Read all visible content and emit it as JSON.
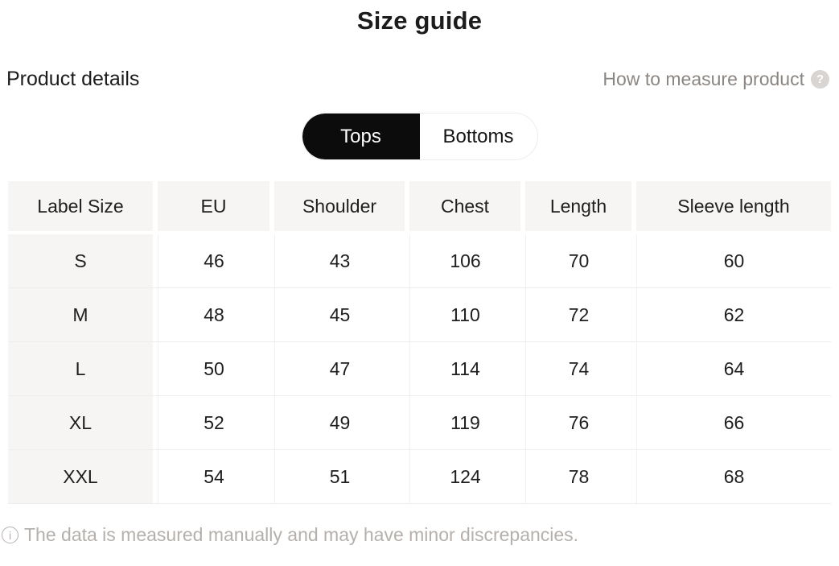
{
  "page": {
    "title": "Size guide",
    "section_title": "Product details",
    "measure_link_label": "How to measure product",
    "disclaimer": "The data is measured manually and may have minor discrepancies."
  },
  "icons": {
    "help_glyph": "?",
    "info_glyph": "i"
  },
  "tabs": [
    {
      "label": "Tops",
      "active": true
    },
    {
      "label": "Bottoms",
      "active": false
    }
  ],
  "table": {
    "headers": [
      "Label Size",
      "EU",
      "Shoulder",
      "Chest",
      "Length",
      "Sleeve length"
    ],
    "rows": [
      [
        "S",
        "46",
        "43",
        "106",
        "70",
        "60"
      ],
      [
        "M",
        "48",
        "45",
        "110",
        "72",
        "62"
      ],
      [
        "L",
        "50",
        "47",
        "114",
        "74",
        "64"
      ],
      [
        "XL",
        "52",
        "49",
        "119",
        "76",
        "66"
      ],
      [
        "XXL",
        "54",
        "51",
        "124",
        "78",
        "68"
      ]
    ]
  },
  "colors": {
    "accent_black": "#0c0c0c",
    "table_header_bg": "#f6f5f3",
    "row_divider": "#efedeb",
    "muted_text": "#8b8682",
    "disclaimer_text": "#b5b0ac",
    "help_icon_bg": "#d8d5d2"
  }
}
